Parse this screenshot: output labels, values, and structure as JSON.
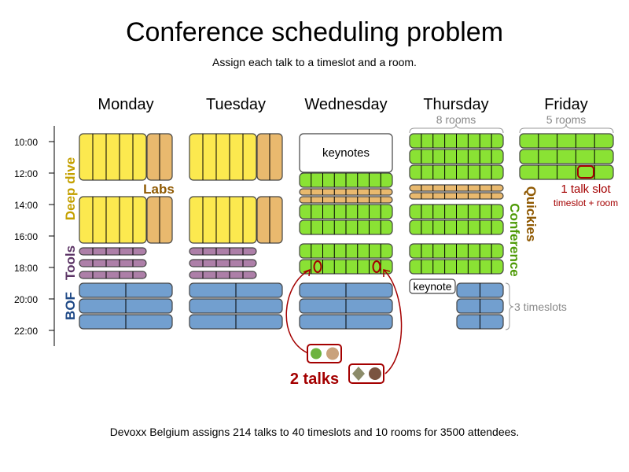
{
  "title": "Conference scheduling problem",
  "subtitle": "Assign each talk to a timeslot and a room.",
  "days": [
    "Monday",
    "Tuesday",
    "Wednesday",
    "Thursday",
    "Friday"
  ],
  "times": [
    "10:00",
    "12:00",
    "14:00",
    "16:00",
    "18:00",
    "20:00",
    "22:00"
  ],
  "track_labels": {
    "deep_dive": "Deep dive",
    "labs": "Labs",
    "tools": "Tools",
    "bof": "BOF",
    "conference": "Conference",
    "quickies": "Quickies"
  },
  "keynotes": "keynotes",
  "keynote": "keynote",
  "annotations": {
    "rooms_8": "8 rooms",
    "rooms_5": "5 rooms",
    "timeslots_3": "3 timeslots",
    "talk_slot": "1 talk slot",
    "talk_slot_sub": "timeslot + room",
    "two_talks": "2 talks"
  },
  "footer": "Devoxx Belgium assigns 214 talks to 40 timeslots and 10 rooms for 3500 attendees.",
  "colors": {
    "deep_dive": "#fce94f",
    "labs": "#e9b96e",
    "tools": "#ad7fa8",
    "bof": "#729fcf",
    "conference": "#8ae234",
    "highlight": "#a40000"
  }
}
